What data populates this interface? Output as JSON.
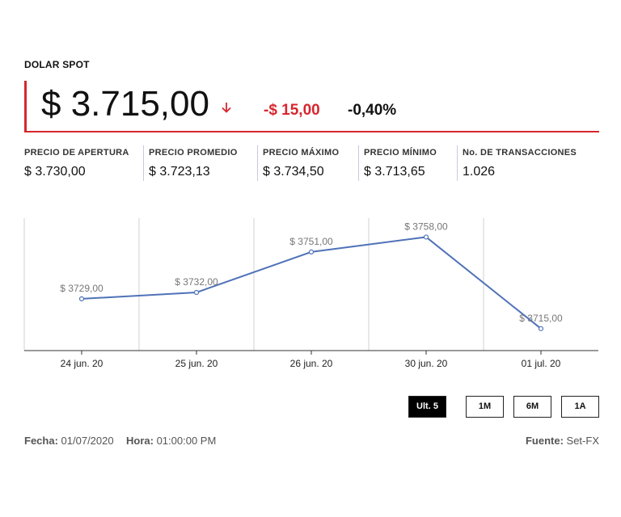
{
  "header": {
    "ticker": "DOLAR SPOT",
    "price": "$ 3.715,00",
    "change": "-$ 15,00",
    "change_pct": "-0,40%",
    "direction_icon": "arrow-down-icon",
    "accent_color": "#d7262d"
  },
  "stats": [
    {
      "label": "PRECIO DE APERTURA",
      "value": "$ 3.730,00"
    },
    {
      "label": "PRECIO PROMEDIO",
      "value": "$ 3.723,13"
    },
    {
      "label": "PRECIO MÁXIMO",
      "value": "$ 3.734,50"
    },
    {
      "label": "PRECIO MÍNIMO",
      "value": "$ 3.713,65"
    },
    {
      "label": "No. DE TRANSACCIONES",
      "value": "1.026"
    }
  ],
  "chart_data": {
    "type": "line",
    "categories": [
      "24 jun. 20",
      "25 jun. 20",
      "26 jun. 20",
      "30 jun. 20",
      "01 jul. 20"
    ],
    "values": [
      3729,
      3732,
      3751,
      3758,
      3715
    ],
    "data_labels": [
      "$ 3729,00",
      "$ 3732,00",
      "$ 3751,00",
      "$ 3758,00",
      "$ 3715,00"
    ],
    "ylim": [
      3710,
      3765
    ],
    "line_color": "#4f72b8",
    "grid": "vertical",
    "title": "",
    "xlabel": "",
    "ylabel": ""
  },
  "ranges": {
    "buttons": [
      "Ult. 5",
      "1M",
      "6M",
      "1A"
    ],
    "active": "Ult. 5"
  },
  "footer": {
    "fecha_label": "Fecha:",
    "fecha": "01/07/2020",
    "hora_label": "Hora:",
    "hora": "01:00:00 PM",
    "fuente_label": "Fuente:",
    "fuente": "Set-FX"
  }
}
